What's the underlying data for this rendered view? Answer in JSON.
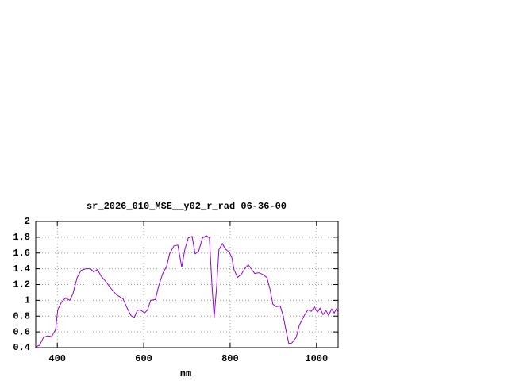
{
  "chart_data": {
    "type": "line",
    "title": "sr_2026_010_MSE__y02_r_rad 06-36-00",
    "x_label": "nm",
    "color": "#9400d3",
    "grid": true,
    "xlim": [
      350,
      1050
    ],
    "xticks": [
      400,
      600,
      800,
      1000
    ],
    "ylim": [
      0.4,
      2
    ],
    "yticks": [
      0.4,
      0.6,
      0.8,
      1,
      1.2,
      1.4,
      1.6,
      1.8,
      2
    ],
    "x": [
      350,
      359,
      368,
      378,
      387,
      396,
      401,
      410,
      419,
      429,
      436,
      446,
      455,
      466,
      477,
      484,
      493,
      501,
      512,
      524,
      537,
      552,
      561,
      570,
      578,
      585,
      592,
      602,
      609,
      616,
      627,
      635,
      644,
      653,
      660,
      670,
      679,
      688,
      695,
      703,
      712,
      719,
      727,
      736,
      745,
      752,
      758,
      763,
      769,
      774,
      782,
      789,
      798,
      804,
      809,
      817,
      826,
      835,
      842,
      850,
      857,
      866,
      875,
      885,
      892,
      899,
      907,
      916,
      923,
      929,
      936,
      943,
      953,
      960,
      967,
      973,
      980,
      988,
      995,
      1002,
      1008,
      1015,
      1022,
      1028,
      1035,
      1041,
      1046,
      1050
    ],
    "values": [
      0.41,
      0.43,
      0.53,
      0.55,
      0.54,
      0.63,
      0.88,
      0.98,
      1.03,
      1.0,
      1.08,
      1.29,
      1.38,
      1.4,
      1.4,
      1.36,
      1.39,
      1.31,
      1.24,
      1.15,
      1.07,
      1.02,
      0.91,
      0.81,
      0.78,
      0.87,
      0.88,
      0.84,
      0.88,
      1.0,
      1.01,
      1.19,
      1.34,
      1.43,
      1.59,
      1.69,
      1.7,
      1.42,
      1.64,
      1.79,
      1.81,
      1.59,
      1.62,
      1.79,
      1.82,
      1.79,
      1.19,
      0.78,
      1.19,
      1.64,
      1.72,
      1.65,
      1.61,
      1.54,
      1.39,
      1.29,
      1.33,
      1.41,
      1.45,
      1.39,
      1.34,
      1.35,
      1.33,
      1.29,
      1.15,
      0.95,
      0.92,
      0.93,
      0.8,
      0.63,
      0.45,
      0.46,
      0.53,
      0.68,
      0.76,
      0.82,
      0.88,
      0.86,
      0.92,
      0.85,
      0.9,
      0.82,
      0.87,
      0.81,
      0.89,
      0.84,
      0.89,
      0.85
    ]
  }
}
